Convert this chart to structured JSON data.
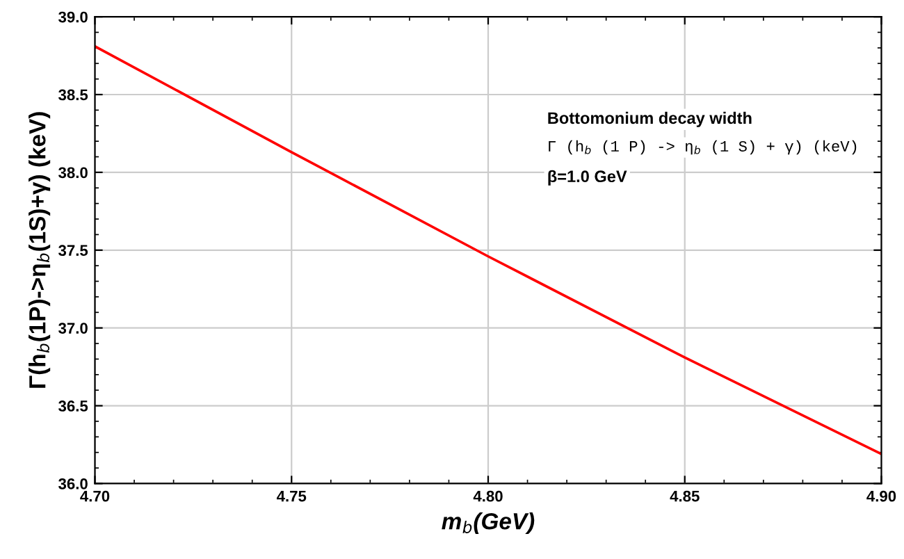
{
  "chart_data": {
    "type": "line",
    "xlabel": "m$_{b}$(GeV)",
    "ylabel": "Γ(h$_{b}$(1P)->η$_{b}$(1S)+γ) (keV)",
    "x": [
      4.7,
      4.75,
      4.8,
      4.85,
      4.9
    ],
    "series": [
      {
        "color": "#ff0000",
        "values": [
          38.81,
          38.13,
          37.46,
          36.81,
          36.19
        ]
      }
    ],
    "xlim": [
      4.7,
      4.9
    ],
    "ylim": [
      36.0,
      39.0
    ],
    "xticks": [
      {
        "value": 4.7,
        "label": "4.70"
      },
      4.75,
      {
        "value": 4.8,
        "label": "4.80"
      },
      4.85,
      {
        "value": 4.9,
        "label": "4.90"
      }
    ],
    "yticks": [
      {
        "value": 36.0,
        "label": "36.0"
      },
      36.5,
      {
        "value": 37.0,
        "label": "37.0"
      },
      37.5,
      {
        "value": 38.0,
        "label": "38.0"
      },
      38.5,
      {
        "value": 39.0,
        "label": "39.0"
      }
    ],
    "grid": true,
    "marker": "none",
    "line_style": "solid",
    "annotations": [
      "Bottomonium decay width",
      "Γ (h$_{b}$ (1 P) -> η$_{b}$ (1 S) + γ) (keV)",
      "β=1.0 GeV"
    ]
  }
}
